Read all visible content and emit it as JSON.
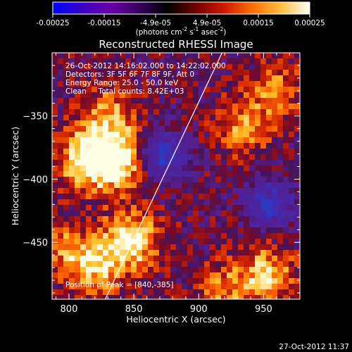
{
  "colorbar": {
    "ticks": [
      "-0.00025",
      "-0.00015",
      "-4.9e-05",
      "4.9e-05",
      "0.00015",
      "0.00025"
    ],
    "units_main": "(photons cm",
    "units_exp1": "-2",
    "units_mid": " s",
    "units_exp2": "-1",
    "units_tail": " asec",
    "units_exp3": "-2",
    "units_close": ")",
    "gradient_stops": [
      "#0000ff",
      "#3a00c8",
      "#6a00a8",
      "#3a0060",
      "#000000",
      "#700000",
      "#d01800",
      "#ff7000",
      "#ffc040",
      "#ffffff"
    ]
  },
  "chart_data": {
    "type": "heatmap",
    "title": "Reconstructed RHESSI Image",
    "xlabel": "Heliocentric X (arcsec)",
    "ylabel": "Heliocentric Y (arcsec)",
    "xlim": [
      787,
      978
    ],
    "ylim": [
      -495,
      -300
    ],
    "xticks": [
      800,
      850,
      900,
      950
    ],
    "yticks": [
      -350,
      -400,
      -450
    ],
    "xtick_labels": [
      "800",
      "850",
      "900",
      "950"
    ],
    "ytick_labels": [
      "−350",
      "−400",
      "−450"
    ],
    "limb_line": [
      [
        828,
        -495
      ],
      [
        918,
        -300
      ]
    ],
    "hotspots": [
      {
        "x": 815,
        "y": -385,
        "strength": 1.0
      },
      {
        "x": 840,
        "y": -385,
        "strength": 0.95
      },
      {
        "x": 830,
        "y": -350,
        "strength": 0.6
      },
      {
        "x": 848,
        "y": -448,
        "strength": 0.9
      },
      {
        "x": 820,
        "y": -470,
        "strength": 0.7
      },
      {
        "x": 795,
        "y": -455,
        "strength": 0.45
      },
      {
        "x": 935,
        "y": -360,
        "strength": 0.55
      },
      {
        "x": 960,
        "y": -330,
        "strength": 0.5
      },
      {
        "x": 952,
        "y": -475,
        "strength": 0.75
      },
      {
        "x": 918,
        "y": -490,
        "strength": 0.5
      }
    ],
    "coldspots": [
      {
        "x": 872,
        "y": -382,
        "strength": 1.0
      },
      {
        "x": 955,
        "y": -420,
        "strength": 0.8
      }
    ],
    "annotations": {
      "time": "26-Oct-2012 14:16:02.000 to 14:22:02.000",
      "detectors": "Detectors: 3F 5F 6F 7F 8F 9F, Att 0",
      "energy": "Energy Range: 25.0 - 50.0 keV",
      "clean": "Clean     Total counts: 8.42E+03",
      "peak": "Position of Peak = [840,-385]"
    }
  },
  "timestamp": "27-Oct-2012 11:37"
}
